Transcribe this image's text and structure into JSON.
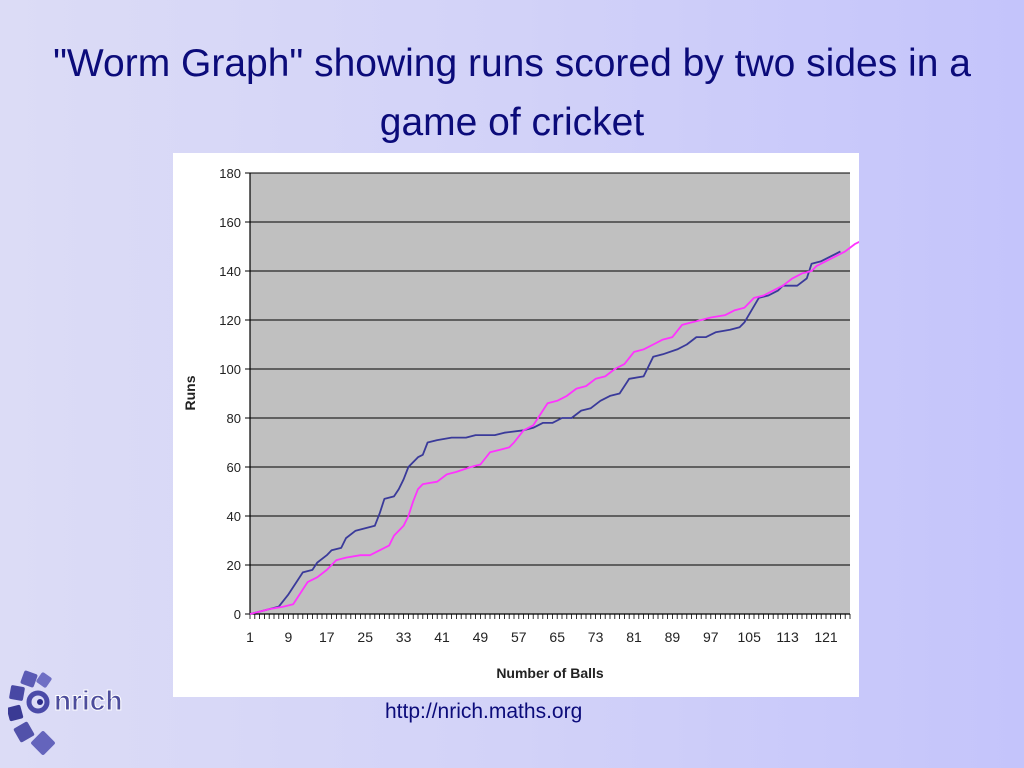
{
  "slide": {
    "title": "\"Worm Graph\" showing runs scored by two sides in a game of cricket",
    "footer_url": "http://nrich.maths.org",
    "logo_text": "nrich"
  },
  "colors": {
    "plot_background": "#c0c0c0",
    "series_a": "#3a3a9a",
    "series_b": "#ff33ff",
    "title_text": "#0b0b7a"
  },
  "chart_data": {
    "type": "line",
    "title": "",
    "xlabel": "Number of Balls",
    "ylabel": "Runs",
    "xlim": [
      1,
      126
    ],
    "ylim": [
      0,
      180
    ],
    "y_ticks": [
      0,
      20,
      40,
      60,
      80,
      100,
      120,
      140,
      160,
      180
    ],
    "x_tick_labels": [
      1,
      9,
      17,
      25,
      33,
      41,
      49,
      57,
      65,
      73,
      81,
      89,
      97,
      105,
      113,
      121
    ],
    "grid": true,
    "legend": "none",
    "series": [
      {
        "color": "#3a3a9a",
        "points": [
          [
            1,
            0
          ],
          [
            3,
            1
          ],
          [
            5,
            2
          ],
          [
            7,
            3
          ],
          [
            9,
            8
          ],
          [
            11,
            14
          ],
          [
            12,
            17
          ],
          [
            14,
            18
          ],
          [
            15,
            21
          ],
          [
            17,
            24
          ],
          [
            18,
            26
          ],
          [
            20,
            27
          ],
          [
            21,
            31
          ],
          [
            23,
            34
          ],
          [
            25,
            35
          ],
          [
            27,
            36
          ],
          [
            28,
            41
          ],
          [
            29,
            47
          ],
          [
            31,
            48
          ],
          [
            32,
            51
          ],
          [
            33,
            55
          ],
          [
            34,
            60
          ],
          [
            36,
            64
          ],
          [
            37,
            65
          ],
          [
            38,
            70
          ],
          [
            40,
            71
          ],
          [
            43,
            72
          ],
          [
            46,
            72
          ],
          [
            48,
            73
          ],
          [
            52,
            73
          ],
          [
            54,
            74
          ],
          [
            58,
            75
          ],
          [
            60,
            76
          ],
          [
            62,
            78
          ],
          [
            64,
            78
          ],
          [
            66,
            80
          ],
          [
            68,
            80
          ],
          [
            70,
            83
          ],
          [
            72,
            84
          ],
          [
            74,
            87
          ],
          [
            76,
            89
          ],
          [
            78,
            90
          ],
          [
            80,
            96
          ],
          [
            83,
            97
          ],
          [
            84,
            101
          ],
          [
            85,
            105
          ],
          [
            87,
            106
          ],
          [
            90,
            108
          ],
          [
            92,
            110
          ],
          [
            94,
            113
          ],
          [
            96,
            113
          ],
          [
            98,
            115
          ],
          [
            101,
            116
          ],
          [
            103,
            117
          ],
          [
            104,
            119
          ],
          [
            107,
            129
          ],
          [
            109,
            130
          ],
          [
            111,
            132
          ],
          [
            112,
            134
          ],
          [
            115,
            134
          ],
          [
            117,
            137
          ],
          [
            118,
            143
          ],
          [
            120,
            144
          ],
          [
            123,
            147
          ],
          [
            124,
            148
          ]
        ]
      },
      {
        "color": "#ff33ff",
        "points": [
          [
            1,
            0
          ],
          [
            3,
            1
          ],
          [
            5,
            2
          ],
          [
            8,
            3
          ],
          [
            10,
            4
          ],
          [
            12,
            10
          ],
          [
            13,
            13
          ],
          [
            15,
            15
          ],
          [
            17,
            18
          ],
          [
            19,
            22
          ],
          [
            21,
            23
          ],
          [
            24,
            24
          ],
          [
            26,
            24
          ],
          [
            28,
            26
          ],
          [
            30,
            28
          ],
          [
            31,
            32
          ],
          [
            33,
            36
          ],
          [
            34,
            40
          ],
          [
            35,
            46
          ],
          [
            36,
            51
          ],
          [
            37,
            53
          ],
          [
            40,
            54
          ],
          [
            42,
            57
          ],
          [
            44,
            58
          ],
          [
            47,
            60
          ],
          [
            49,
            61
          ],
          [
            51,
            66
          ],
          [
            53,
            67
          ],
          [
            55,
            68
          ],
          [
            56,
            70
          ],
          [
            58,
            75
          ],
          [
            60,
            77
          ],
          [
            61,
            80
          ],
          [
            63,
            86
          ],
          [
            65,
            87
          ],
          [
            67,
            89
          ],
          [
            69,
            92
          ],
          [
            71,
            93
          ],
          [
            73,
            96
          ],
          [
            75,
            97
          ],
          [
            77,
            100
          ],
          [
            79,
            102
          ],
          [
            81,
            107
          ],
          [
            83,
            108
          ],
          [
            85,
            110
          ],
          [
            87,
            112
          ],
          [
            89,
            113
          ],
          [
            91,
            118
          ],
          [
            93,
            119
          ],
          [
            95,
            120
          ],
          [
            97,
            121
          ],
          [
            100,
            122
          ],
          [
            102,
            124
          ],
          [
            104,
            125
          ],
          [
            106,
            129
          ],
          [
            108,
            130
          ],
          [
            110,
            132
          ],
          [
            112,
            134
          ],
          [
            114,
            137
          ],
          [
            116,
            139
          ],
          [
            118,
            140
          ],
          [
            119,
            142
          ],
          [
            121,
            144
          ],
          [
            123,
            146
          ],
          [
            125,
            148
          ],
          [
            127,
            151
          ],
          [
            129,
            153
          ],
          [
            131,
            157
          ]
        ]
      }
    ]
  }
}
